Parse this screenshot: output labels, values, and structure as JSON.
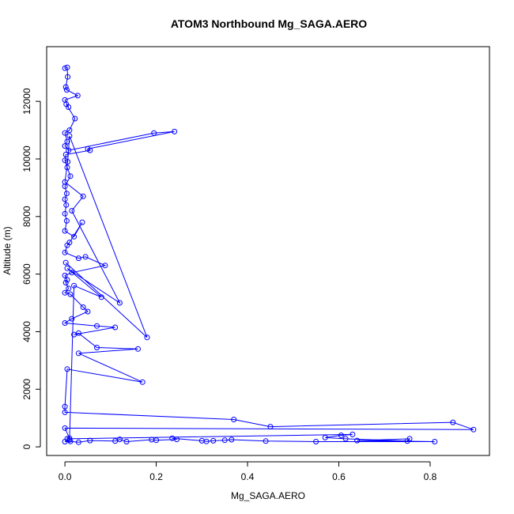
{
  "chart_data": {
    "type": "line",
    "title": "ATOM3 Northbound Mg_SAGA.AERO",
    "xlabel": "Mg_SAGA.AERO",
    "ylabel": "Altitude (m)",
    "xlim": [
      -0.04,
      0.93
    ],
    "ylim": [
      -300,
      13900
    ],
    "x_ticks": [
      0.0,
      0.2,
      0.4,
      0.6,
      0.8
    ],
    "x_tick_labels": [
      "0.0",
      "0.2",
      "0.4",
      "0.6",
      "0.8"
    ],
    "y_ticks": [
      0,
      2000,
      4000,
      6000,
      8000,
      10000,
      12000
    ],
    "y_tick_labels": [
      "0",
      "2000",
      "4000",
      "6000",
      "8000",
      "10000",
      "12000"
    ],
    "grid": false,
    "color": "#0000ff",
    "series": [
      {
        "points": [
          [
            0.0,
            13150
          ],
          [
            0.005,
            13180
          ],
          [
            0.006,
            12850
          ],
          [
            0.002,
            12500
          ],
          [
            0.004,
            12400
          ],
          [
            0.028,
            12200
          ],
          [
            0.0,
            12050
          ],
          [
            0.008,
            11800
          ],
          [
            0.003,
            11900
          ],
          [
            0.022,
            11400
          ],
          [
            0.01,
            11000
          ],
          [
            0.0,
            10900
          ],
          [
            0.005,
            10600
          ],
          [
            0.0,
            10450
          ],
          [
            0.008,
            10300
          ],
          [
            0.195,
            10900
          ],
          [
            0.24,
            10950
          ],
          [
            0.05,
            10350
          ],
          [
            0.055,
            10300
          ],
          [
            0.002,
            10150
          ],
          [
            0.0,
            9950
          ],
          [
            0.005,
            9700
          ],
          [
            0.012,
            9400
          ],
          [
            0.0,
            9050
          ],
          [
            0.004,
            8800
          ],
          [
            0.0,
            8600
          ],
          [
            0.003,
            8400
          ],
          [
            0.0,
            8100
          ],
          [
            0.004,
            7850
          ],
          [
            0.0,
            7500
          ],
          [
            0.02,
            7300
          ],
          [
            0.038,
            7800
          ],
          [
            0.01,
            7100
          ],
          [
            0.005,
            7000
          ],
          [
            0.0,
            6750
          ],
          [
            0.03,
            6550
          ],
          [
            0.045,
            6600
          ],
          [
            0.088,
            6300
          ],
          [
            0.015,
            6050
          ],
          [
            0.0,
            5950
          ],
          [
            0.005,
            5800
          ],
          [
            0.002,
            5700
          ],
          [
            0.008,
            5500
          ],
          [
            0.0,
            5350
          ],
          [
            0.012,
            5300
          ],
          [
            0.04,
            4850
          ],
          [
            0.05,
            4700
          ],
          [
            0.015,
            4450
          ],
          [
            0.0,
            4300
          ],
          [
            0.07,
            4200
          ],
          [
            0.11,
            4150
          ],
          [
            0.02,
            3900
          ],
          [
            0.03,
            3950
          ],
          [
            0.07,
            3450
          ],
          [
            0.16,
            3400
          ],
          [
            0.03,
            3250
          ],
          [
            0.17,
            2250
          ],
          [
            0.005,
            2700
          ],
          [
            0.0,
            1400
          ],
          [
            0.0,
            1200
          ],
          [
            0.37,
            950
          ],
          [
            0.45,
            700
          ],
          [
            0.85,
            850
          ],
          [
            0.895,
            600
          ],
          [
            0.0,
            650
          ],
          [
            0.01,
            300
          ],
          [
            0.005,
            280
          ],
          [
            0.63,
            430
          ],
          [
            0.605,
            400
          ],
          [
            0.57,
            320
          ],
          [
            0.615,
            280
          ],
          [
            0.75,
            200
          ],
          [
            0.755,
            280
          ],
          [
            0.64,
            220
          ],
          [
            0.81,
            180
          ],
          [
            0.55,
            180
          ],
          [
            0.44,
            200
          ],
          [
            0.365,
            250
          ],
          [
            0.35,
            230
          ],
          [
            0.325,
            210
          ],
          [
            0.31,
            190
          ],
          [
            0.3,
            210
          ],
          [
            0.235,
            300
          ],
          [
            0.245,
            260
          ],
          [
            0.2,
            230
          ],
          [
            0.19,
            250
          ],
          [
            0.135,
            180
          ],
          [
            0.12,
            260
          ],
          [
            0.11,
            200
          ],
          [
            0.055,
            220
          ],
          [
            0.03,
            160
          ],
          [
            0.012,
            190
          ],
          [
            0.0,
            180
          ],
          [
            0.01,
            240
          ],
          [
            0.02,
            5600
          ],
          [
            0.08,
            5200
          ],
          [
            0.005,
            6200
          ],
          [
            0.12,
            5000
          ],
          [
            0.015,
            8200
          ],
          [
            0.04,
            8700
          ],
          [
            0.0,
            9200
          ],
          [
            0.006,
            9900
          ],
          [
            0.01,
            10800
          ],
          [
            0.18,
            3800
          ],
          [
            0.002,
            6400
          ]
        ]
      }
    ]
  }
}
